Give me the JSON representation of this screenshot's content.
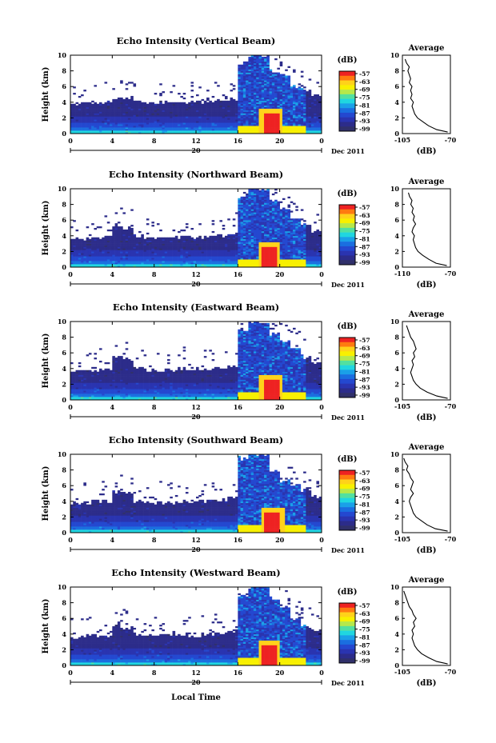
{
  "figure": {
    "xlabel": "Local Time",
    "date_label": "Dec 2011",
    "colorbar_unit": "(dB)",
    "colorbar_ticks": [
      "-57",
      "-63",
      "-69",
      "-75",
      "-81",
      "-87",
      "-93",
      "-99"
    ],
    "colorbar_colors": [
      "#ee2222",
      "#ff7a10",
      "#ffd21a",
      "#f8f000",
      "#b6e84a",
      "#52e0a0",
      "#20d6e0",
      "#1aa0e8",
      "#1a6ee0",
      "#2448d0",
      "#2a34b0",
      "#2c2c8a",
      "#30306a"
    ]
  },
  "chart_data": [
    {
      "type": "heatmap",
      "title": "Echo Intensity (Vertical Beam)",
      "ylabel": "Height (km)",
      "xlabel": "",
      "x_ticks": [
        "0",
        "4",
        "8",
        "12",
        "16",
        "20",
        "0"
      ],
      "y_ticks": [
        "0",
        "2",
        "4",
        "6",
        "8",
        "10"
      ],
      "xlim": [
        0,
        24
      ],
      "ylim": [
        0,
        10
      ],
      "date_day": "20",
      "colorbar": {
        "unit": "(dB)",
        "ticks": [
          -57,
          -63,
          -69,
          -75,
          -81,
          -87,
          -93,
          -99
        ]
      },
      "echo_top_km": [
        3.8,
        3.9,
        4.0,
        4.0,
        4.6,
        4.6,
        4.2,
        4.0,
        4.0,
        4.0,
        4.1,
        4.0,
        4.0,
        4.1,
        4.2,
        4.3,
        9.0,
        10.0,
        10.0,
        8.0,
        7.5,
        6.0,
        5.5,
        4.8
      ],
      "peak_echo_center_h": 19.2,
      "average_profile": {
        "title": "Average",
        "xlabel": "(dB)",
        "x_ticks": [
          "-105",
          "-70"
        ],
        "xlim": [
          -105,
          -70
        ],
        "y_ticks": [
          "0",
          "2",
          "4",
          "6",
          "8",
          "10"
        ],
        "height_km": [
          0.2,
          0.5,
          1.0,
          1.5,
          2.0,
          2.5,
          3.0,
          3.5,
          4.0,
          4.5,
          5.0,
          5.5,
          6.0,
          6.5,
          7.0,
          7.5,
          8.0,
          8.5,
          9.0,
          9.5
        ],
        "values_db": [
          -72,
          -80,
          -86,
          -90,
          -94,
          -96,
          -97,
          -98,
          -97,
          -99,
          -98,
          -99,
          -98,
          -100,
          -99,
          -100,
          -101,
          -100,
          -102,
          -103
        ]
      }
    },
    {
      "type": "heatmap",
      "title": "Echo Intensity (Northward Beam)",
      "ylabel": "Height (km)",
      "xlabel": "",
      "x_ticks": [
        "0",
        "4",
        "8",
        "12",
        "16",
        "20",
        "0"
      ],
      "y_ticks": [
        "0",
        "2",
        "4",
        "6",
        "8",
        "10"
      ],
      "xlim": [
        0,
        24
      ],
      "ylim": [
        0,
        10
      ],
      "date_day": "20",
      "colorbar": {
        "unit": "(dB)",
        "ticks": [
          -57,
          -63,
          -69,
          -75,
          -81,
          -87,
          -93,
          -99
        ]
      },
      "echo_top_km": [
        3.6,
        3.7,
        3.8,
        3.8,
        5.2,
        5.0,
        4.0,
        3.8,
        3.7,
        3.8,
        3.8,
        3.7,
        3.8,
        3.9,
        4.0,
        4.2,
        9.0,
        10.0,
        10.0,
        8.5,
        7.5,
        6.0,
        5.5,
        4.6
      ],
      "peak_echo_center_h": 19.0,
      "average_profile": {
        "title": "Average",
        "xlabel": "(dB)",
        "x_ticks": [
          "-110",
          "-70"
        ],
        "xlim": [
          -110,
          -70
        ],
        "y_ticks": [
          "0",
          "2",
          "4",
          "6",
          "8",
          "10"
        ],
        "height_km": [
          0.2,
          0.5,
          1.0,
          1.5,
          2.0,
          2.5,
          3.0,
          3.5,
          4.0,
          4.5,
          5.0,
          5.5,
          6.0,
          6.5,
          7.0,
          7.5,
          8.0,
          8.5,
          9.0,
          9.5
        ],
        "values_db": [
          -73,
          -82,
          -88,
          -93,
          -97,
          -99,
          -100,
          -101,
          -100,
          -102,
          -101,
          -99,
          -101,
          -100,
          -102,
          -101,
          -103,
          -102,
          -104,
          -105
        ]
      }
    },
    {
      "type": "heatmap",
      "title": "Echo Intensity (Eastward Beam)",
      "ylabel": "Height (km)",
      "xlabel": "",
      "x_ticks": [
        "0",
        "4",
        "8",
        "12",
        "16",
        "20",
        "0"
      ],
      "y_ticks": [
        "0",
        "2",
        "4",
        "6",
        "8",
        "10"
      ],
      "xlim": [
        0,
        24
      ],
      "ylim": [
        0,
        10
      ],
      "date_day": "20",
      "colorbar": {
        "unit": "(dB)",
        "ticks": [
          -57,
          -63,
          -69,
          -75,
          -81,
          -87,
          -93,
          -99
        ]
      },
      "echo_top_km": [
        3.6,
        3.7,
        3.8,
        3.9,
        5.6,
        5.2,
        4.0,
        3.8,
        3.8,
        3.9,
        4.0,
        3.9,
        4.0,
        4.0,
        4.2,
        4.4,
        9.0,
        10.0,
        9.8,
        8.5,
        7.5,
        6.5,
        5.5,
        4.8
      ],
      "peak_echo_center_h": 19.2,
      "average_profile": {
        "title": "Average",
        "xlabel": "(dB)",
        "x_ticks": [
          "-105",
          "-70"
        ],
        "xlim": [
          -105,
          -70
        ],
        "y_ticks": [
          "0",
          "2",
          "4",
          "6",
          "8",
          "10"
        ],
        "height_km": [
          0.2,
          0.5,
          1.0,
          1.5,
          2.0,
          2.5,
          3.0,
          3.5,
          4.0,
          4.5,
          5.0,
          5.5,
          6.0,
          6.5,
          7.0,
          7.5,
          8.0,
          8.5,
          9.0,
          9.5
        ],
        "values_db": [
          -72,
          -80,
          -87,
          -92,
          -95,
          -97,
          -98,
          -99,
          -98,
          -97,
          -98,
          -96,
          -97,
          -95,
          -96,
          -97,
          -99,
          -100,
          -101,
          -102
        ]
      }
    },
    {
      "type": "heatmap",
      "title": "Echo Intensity (Southward Beam)",
      "ylabel": "Height (km)",
      "xlabel": "",
      "x_ticks": [
        "0",
        "4",
        "8",
        "12",
        "16",
        "20",
        "0"
      ],
      "y_ticks": [
        "0",
        "2",
        "4",
        "6",
        "8",
        "10"
      ],
      "xlim": [
        0,
        24
      ],
      "ylim": [
        0,
        10
      ],
      "date_day": "20",
      "colorbar": {
        "unit": "(dB)",
        "ticks": [
          -57,
          -63,
          -69,
          -75,
          -81,
          -87,
          -93,
          -99
        ]
      },
      "echo_top_km": [
        3.8,
        3.8,
        3.9,
        4.0,
        5.2,
        5.0,
        4.0,
        3.9,
        3.8,
        3.9,
        4.0,
        4.0,
        4.0,
        4.1,
        4.2,
        4.5,
        9.5,
        10.0,
        10.0,
        8.0,
        6.5,
        6.0,
        5.5,
        4.6
      ],
      "peak_echo_center_h": 19.3,
      "average_profile": {
        "title": "Average",
        "xlabel": "(dB)",
        "x_ticks": [
          "-105",
          "-70"
        ],
        "xlim": [
          -105,
          -70
        ],
        "y_ticks": [
          "0",
          "2",
          "4",
          "6",
          "8",
          "10"
        ],
        "height_km": [
          0.2,
          0.5,
          1.0,
          1.5,
          2.0,
          2.5,
          3.0,
          3.5,
          4.0,
          4.5,
          5.0,
          5.5,
          6.0,
          6.5,
          7.0,
          7.5,
          8.0,
          8.5,
          9.0,
          9.5
        ],
        "values_db": [
          -72,
          -81,
          -87,
          -91,
          -95,
          -97,
          -98,
          -99,
          -100,
          -99,
          -97,
          -99,
          -98,
          -97,
          -99,
          -100,
          -102,
          -101,
          -103,
          -104
        ]
      }
    },
    {
      "type": "heatmap",
      "title": "Echo Intensity (Westward Beam)",
      "ylabel": "Height (km)",
      "xlabel": "Local Time",
      "x_ticks": [
        "0",
        "4",
        "8",
        "12",
        "16",
        "20",
        "0"
      ],
      "y_ticks": [
        "0",
        "2",
        "4",
        "6",
        "8",
        "10"
      ],
      "xlim": [
        0,
        24
      ],
      "ylim": [
        0,
        10
      ],
      "date_day": "20",
      "colorbar": {
        "unit": "(dB)",
        "ticks": [
          -57,
          -63,
          -69,
          -75,
          -81,
          -87,
          -93,
          -99
        ]
      },
      "echo_top_km": [
        3.6,
        3.7,
        3.8,
        3.9,
        5.0,
        4.8,
        4.0,
        3.8,
        3.8,
        3.9,
        3.9,
        3.8,
        3.9,
        4.0,
        4.1,
        4.3,
        9.0,
        10.0,
        10.0,
        8.5,
        7.5,
        6.0,
        5.0,
        4.4
      ],
      "peak_echo_center_h": 19.0,
      "average_profile": {
        "title": "Average",
        "xlabel": "(dB)",
        "x_ticks": [
          "-105",
          "-70"
        ],
        "xlim": [
          -105,
          -70
        ],
        "y_ticks": [
          "0",
          "2",
          "4",
          "6",
          "8",
          "10"
        ],
        "height_km": [
          0.2,
          0.5,
          1.0,
          1.5,
          2.0,
          2.5,
          3.0,
          3.5,
          4.0,
          4.5,
          5.0,
          5.5,
          6.0,
          6.5,
          7.0,
          7.5,
          8.0,
          8.5,
          9.0,
          9.5
        ],
        "values_db": [
          -72,
          -80,
          -86,
          -91,
          -94,
          -96,
          -97,
          -98,
          -97,
          -98,
          -96,
          -97,
          -95,
          -97,
          -98,
          -100,
          -101,
          -102,
          -103,
          -104
        ]
      }
    }
  ]
}
